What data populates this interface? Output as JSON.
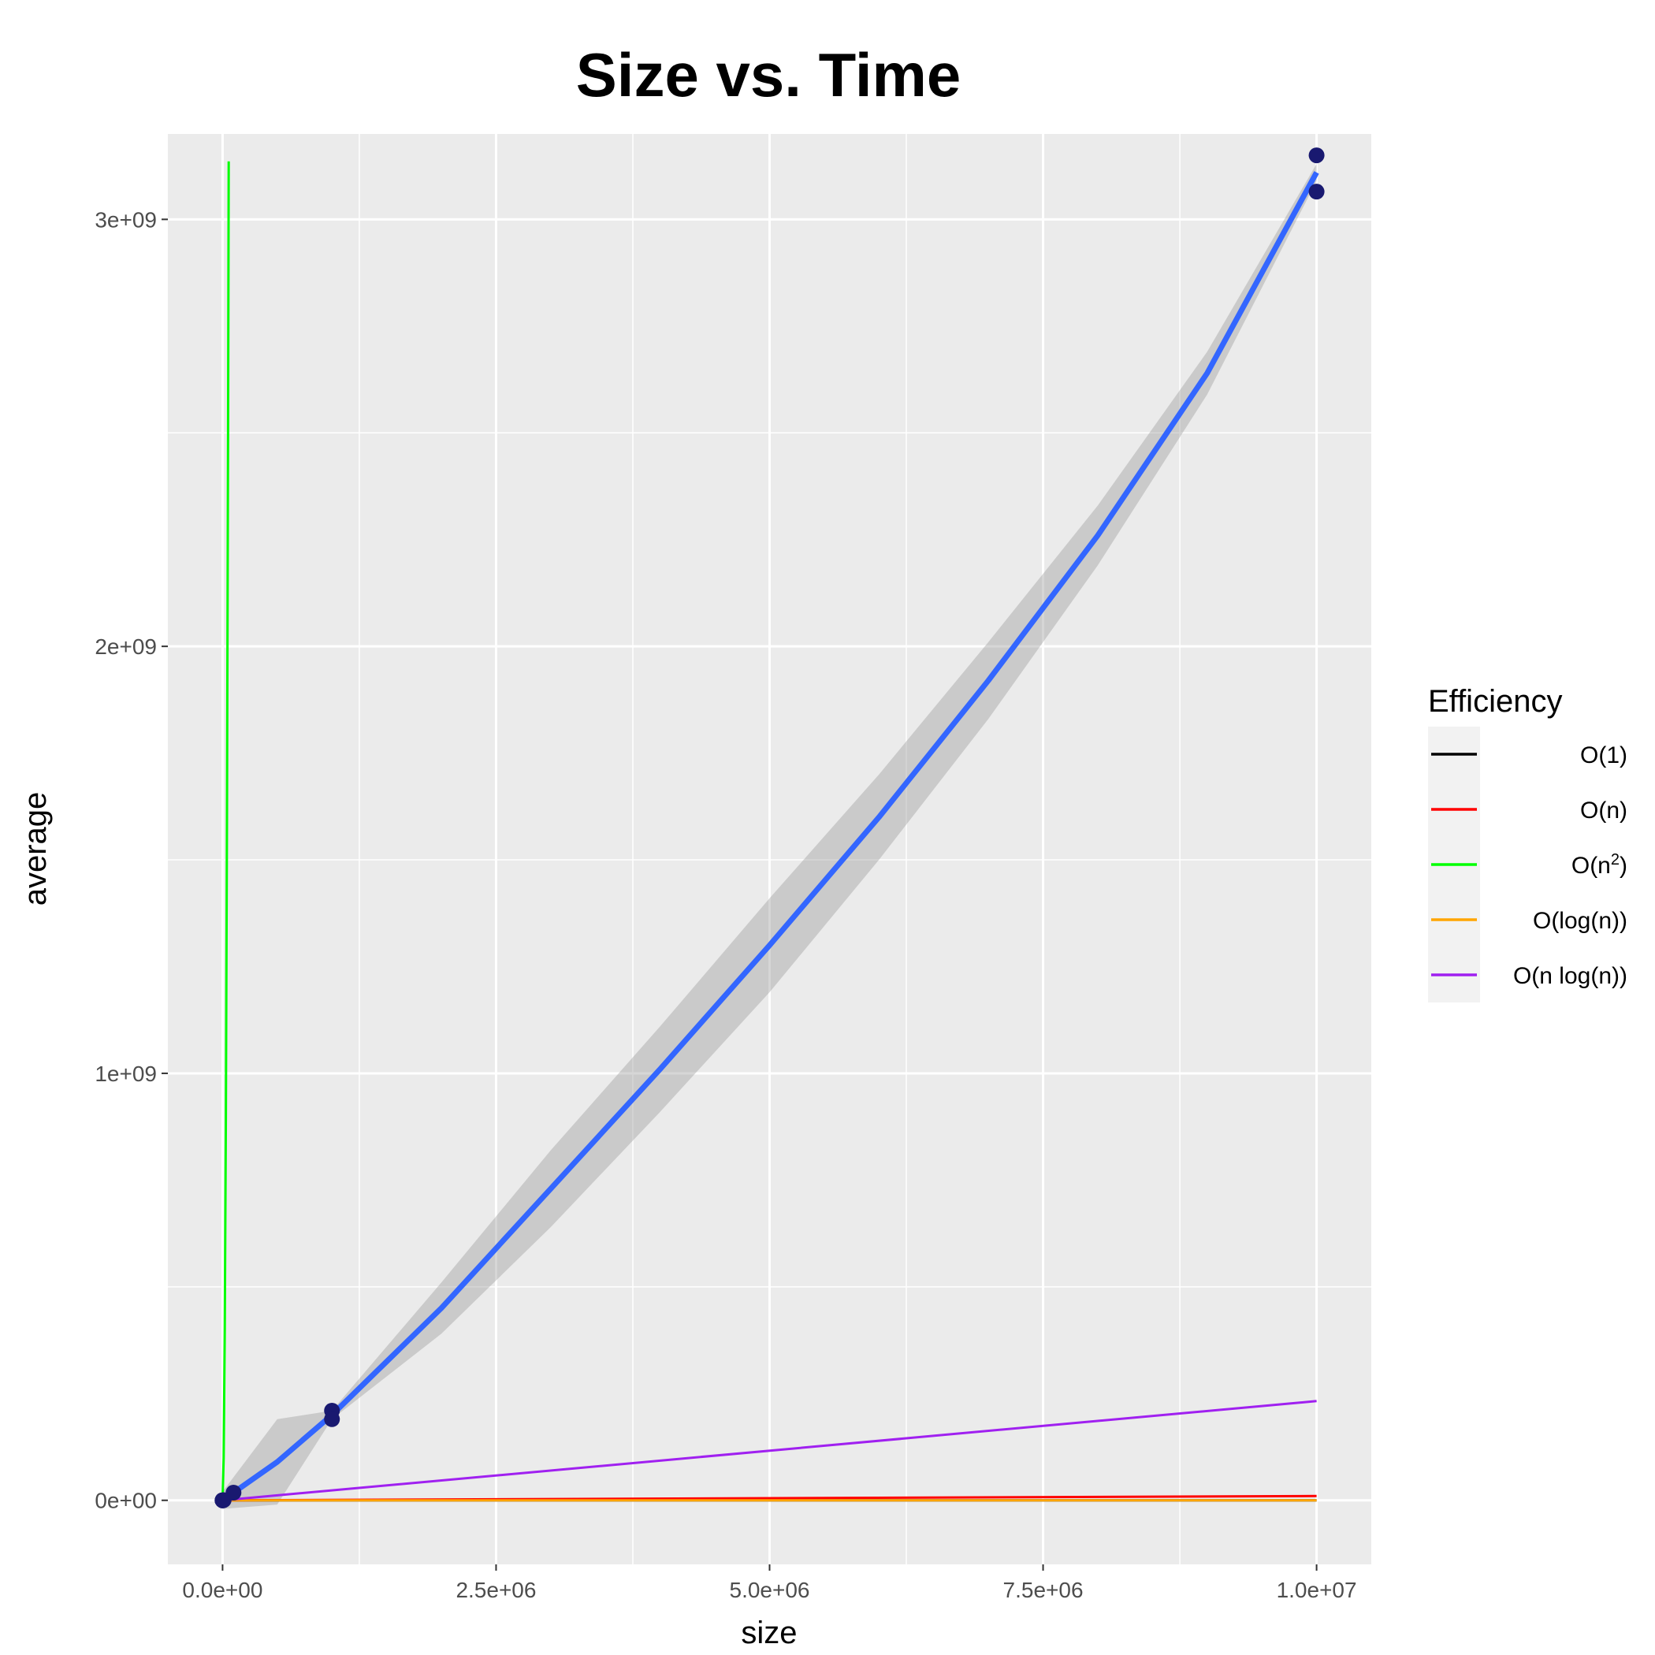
{
  "chart_data": {
    "type": "line",
    "title": "Size vs. Time",
    "xlabel": "size",
    "ylabel": "average",
    "xlim": [
      -500000,
      10500000
    ],
    "ylim": [
      -150000000,
      3200000000
    ],
    "x_ticks": [
      {
        "value": 0,
        "label": "0.0e+00"
      },
      {
        "value": 2500000,
        "label": "2.5e+06"
      },
      {
        "value": 5000000,
        "label": "5.0e+06"
      },
      {
        "value": 7500000,
        "label": "7.5e+06"
      },
      {
        "value": 10000000,
        "label": "1.0e+07"
      }
    ],
    "y_ticks": [
      {
        "value": 0,
        "label": "0e+00"
      },
      {
        "value": 1000000000,
        "label": "1e+09"
      },
      {
        "value": 2000000000,
        "label": "2e+09"
      },
      {
        "value": 3000000000,
        "label": "3e+09"
      }
    ],
    "grid": true,
    "legend": {
      "title": "Efficiency",
      "position": "right",
      "entries": [
        {
          "label": "O(1)",
          "color": "#000000"
        },
        {
          "label": "O(n)",
          "color": "#ff0000"
        },
        {
          "label": "O(n",
          "sup": "2",
          "suffix": ")",
          "color": "#00ff00"
        },
        {
          "label": "O(log(n))",
          "color": "#ffa500"
        },
        {
          "label": "O(n log(n))",
          "color": "#a020f0"
        }
      ]
    },
    "points": {
      "color": "#191970",
      "x": [
        0,
        10,
        100,
        1000,
        10000,
        100000,
        1000000,
        1000000,
        10000000,
        10000000
      ],
      "y": [
        0,
        0,
        0,
        0,
        500000,
        18000000,
        210000000,
        190000000,
        3150000000,
        3065000000
      ]
    },
    "smooth_fit": {
      "color": "#3366ff",
      "x": [
        0,
        500000,
        1000000,
        2000000,
        3000000,
        4000000,
        5000000,
        6000000,
        7000000,
        8000000,
        9000000,
        10000000
      ],
      "y": [
        0,
        90000000,
        200000000,
        450000000,
        730000000,
        1010000000,
        1300000000,
        1600000000,
        1920000000,
        2260000000,
        2640000000,
        3110000000
      ],
      "band_lower": [
        -20000000,
        -10000000,
        190000000,
        390000000,
        640000000,
        910000000,
        1190000000,
        1500000000,
        1830000000,
        2190000000,
        2590000000,
        3090000000
      ],
      "band_upper": [
        20000000,
        190000000,
        210000000,
        510000000,
        820000000,
        1110000000,
        1410000000,
        1700000000,
        2010000000,
        2330000000,
        2690000000,
        3130000000
      ]
    },
    "series": [
      {
        "name": "O(1)",
        "color": "#000000",
        "x": [
          0,
          10000000
        ],
        "y": [
          1,
          1
        ]
      },
      {
        "name": "O(n)",
        "color": "#ff0000",
        "x": [
          0,
          10000000
        ],
        "y": [
          0,
          10000000
        ]
      },
      {
        "name": "O(n²)",
        "color": "#00ff00",
        "x": [
          0,
          10000,
          20000,
          30000,
          40000,
          50000,
          56000
        ],
        "y": [
          0,
          100000000,
          400000000,
          900000000,
          1600000000,
          2500000000,
          3136000000
        ]
      },
      {
        "name": "O(log(n))",
        "color": "#ffa500",
        "x": [
          0,
          10000000
        ],
        "y": [
          0,
          23
        ]
      },
      {
        "name": "O(n log(n))",
        "color": "#a020f0",
        "x": [
          0,
          10000000
        ],
        "y": [
          0,
          232500000
        ]
      }
    ]
  }
}
